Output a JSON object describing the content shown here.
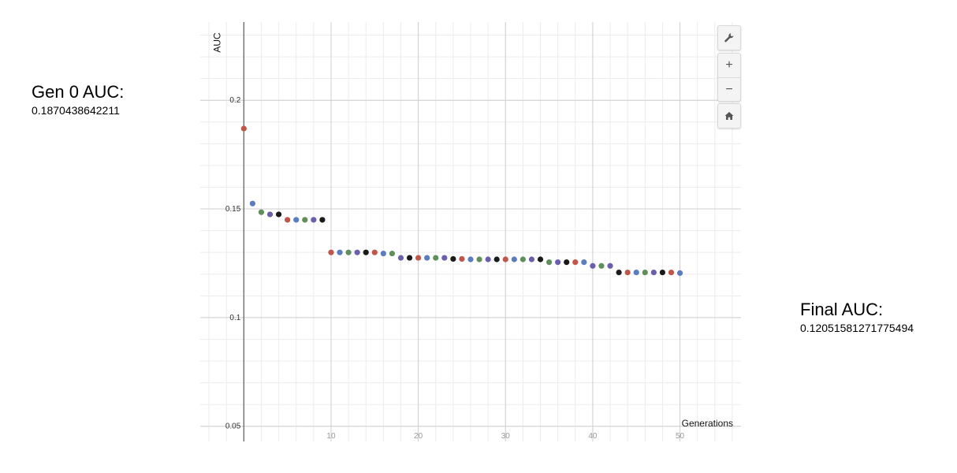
{
  "gen0": {
    "title": "Gen 0 AUC:",
    "value": "0.1870438642211"
  },
  "final": {
    "title": "Final AUC:",
    "value": "0.12051581271775494"
  },
  "toolbar": {
    "wrench_icon": "wrench-icon",
    "zoom_in_label": "+",
    "zoom_out_label": "−",
    "home_icon": "home-icon"
  },
  "chart_data": {
    "type": "scatter",
    "title": "",
    "xlabel": "Generations",
    "ylabel": "AUC",
    "xlim": [
      -5,
      57
    ],
    "ylim": [
      0.043,
      0.236
    ],
    "x_ticks": [
      10,
      20,
      30,
      40,
      50
    ],
    "y_ticks": [
      0.05,
      0.1,
      0.15,
      0.2
    ],
    "x_tick_labels": [
      "10",
      "20",
      "30",
      "40",
      "50"
    ],
    "y_tick_labels": [
      "0.05",
      "0.1",
      "0.15",
      "0.2"
    ],
    "grid": true,
    "series": [
      {
        "x": [
          0,
          1,
          2,
          3,
          4,
          5,
          6,
          7,
          8,
          9,
          10,
          11,
          12,
          13,
          14,
          15,
          16,
          17,
          18,
          19,
          20,
          21,
          22,
          23,
          24,
          25,
          26,
          27,
          28,
          29,
          30,
          31,
          32,
          33,
          34,
          35,
          36,
          37,
          38,
          39,
          40,
          41,
          42,
          43,
          44,
          45,
          46,
          47,
          48,
          49,
          50
        ],
        "y": [
          0.187,
          0.1525,
          0.1485,
          0.1475,
          0.1475,
          0.145,
          0.145,
          0.145,
          0.145,
          0.145,
          0.13,
          0.13,
          0.13,
          0.13,
          0.13,
          0.13,
          0.1295,
          0.1295,
          0.1275,
          0.1275,
          0.1275,
          0.1275,
          0.1275,
          0.1275,
          0.127,
          0.127,
          0.1268,
          0.1268,
          0.1268,
          0.1268,
          0.1268,
          0.1268,
          0.1268,
          0.1268,
          0.1268,
          0.1255,
          0.1255,
          0.1255,
          0.1255,
          0.1255,
          0.1238,
          0.1238,
          0.1238,
          0.1208,
          0.1208,
          0.1208,
          0.1208,
          0.1208,
          0.1208,
          0.1208,
          0.1205
        ],
        "colors": [
          "#c0554a",
          "#5a7cc0",
          "#5f8f5a",
          "#6a5fac",
          "#1a1a1a",
          "#c0554a",
          "#5a7cc0",
          "#5f8f5a",
          "#6a5fac",
          "#1a1a1a",
          "#c0554a",
          "#5a7cc0",
          "#5f8f5a",
          "#6a5fac",
          "#1a1a1a",
          "#c0554a",
          "#5a7cc0",
          "#5f8f5a",
          "#6a5fac",
          "#1a1a1a",
          "#c0554a",
          "#5a7cc0",
          "#5f8f5a",
          "#6a5fac",
          "#1a1a1a",
          "#c0554a",
          "#5a7cc0",
          "#5f8f5a",
          "#6a5fac",
          "#1a1a1a",
          "#c0554a",
          "#5a7cc0",
          "#5f8f5a",
          "#6a5fac",
          "#1a1a1a",
          "#5f8f5a",
          "#6a5fac",
          "#1a1a1a",
          "#c0554a",
          "#5a7cc0",
          "#6a5fac",
          "#5f8f5a",
          "#6a5fac",
          "#1a1a1a",
          "#c0554a",
          "#5a7cc0",
          "#5f8f5a",
          "#6a5fac",
          "#1a1a1a",
          "#c0554a",
          "#5a7cc0"
        ]
      }
    ]
  }
}
